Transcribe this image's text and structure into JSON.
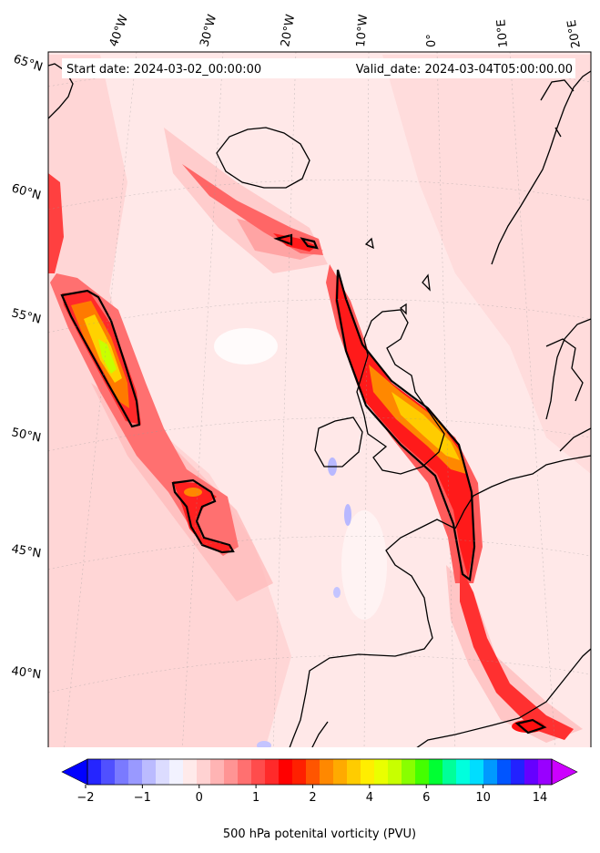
{
  "figure": {
    "start_label": "Start date: 2024-03-02_00:00:00",
    "valid_label": "Valid_date: 2024-03-04T05:00:00.00",
    "colorbar_label": "500 hPa potenital vorticity (PVU)"
  },
  "lon_labels": [
    "40°W",
    "30°W",
    "20°W",
    "10°W",
    "0°",
    "10°E",
    "20°E"
  ],
  "lat_labels": [
    "65°N",
    "60°N",
    "55°N",
    "50°N",
    "45°N",
    "40°N"
  ],
  "colorbar": {
    "tick_labels": [
      "−2",
      "−1",
      "0",
      "1",
      "2",
      "4",
      "6",
      "10",
      "14"
    ],
    "colors": [
      "#0000ff",
      "#2525ff",
      "#5050ff",
      "#7a7aff",
      "#9999ff",
      "#bbbbff",
      "#dcdcff",
      "#f2f2ff",
      "#ffeaea",
      "#ffd2d2",
      "#ffb4b4",
      "#ff9494",
      "#ff7070",
      "#ff4c4c",
      "#ff2a2a",
      "#ff0000",
      "#ff2000",
      "#ff5500",
      "#ff8800",
      "#ffaa00",
      "#ffcc00",
      "#ffee00",
      "#eaff00",
      "#c8ff00",
      "#88ff00",
      "#44ff00",
      "#00ff33",
      "#00ff99",
      "#00ffdd",
      "#00ddff",
      "#0099ff",
      "#0055ff",
      "#2222ff",
      "#6600ff",
      "#9900ff",
      "#cc00ff"
    ]
  }
}
